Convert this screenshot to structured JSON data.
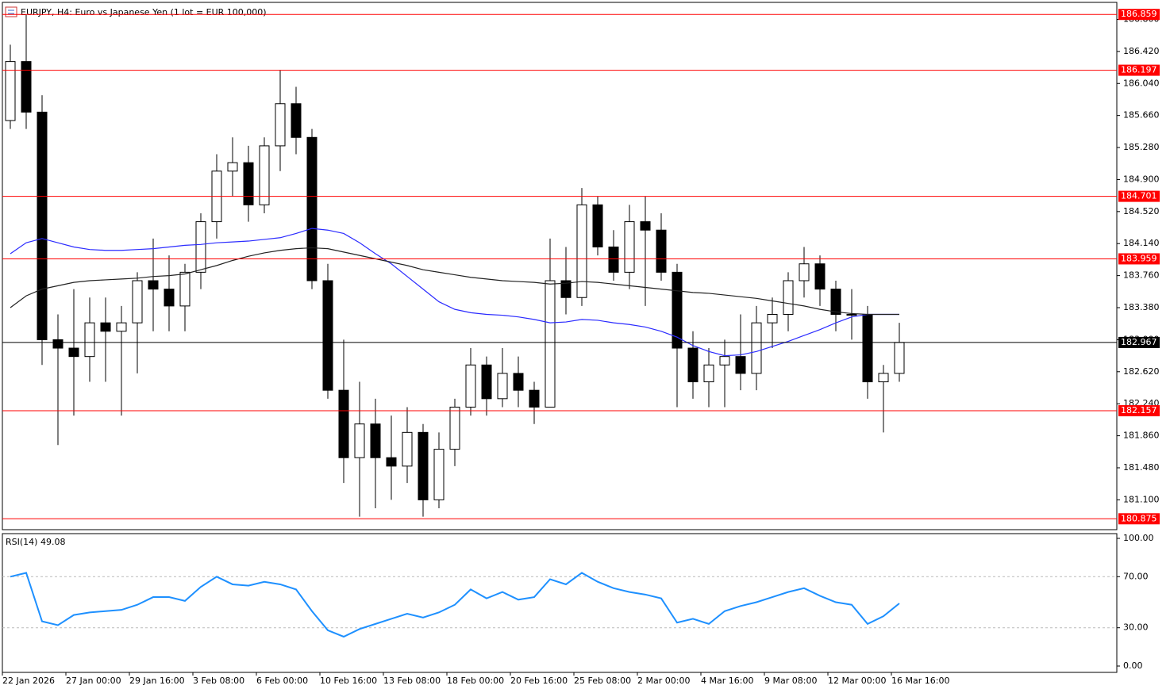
{
  "chart_data": {
    "type": "candlestick",
    "title": "EURJPY, H4:  Euro vs Japanese Yen (1 lot = EUR 100,000)",
    "categories": [
      "22 Jan 2026",
      null,
      null,
      null,
      "27 Jan 00:00",
      null,
      null,
      null,
      "29 Jan 16:00",
      null,
      null,
      null,
      "3 Feb 08:00",
      null,
      null,
      null,
      "6 Feb 00:00",
      null,
      null,
      null,
      "10 Feb 16:00",
      null,
      null,
      null,
      "13 Feb 08:00",
      null,
      null,
      null,
      "18 Feb 00:00",
      null,
      null,
      null,
      "20 Feb 16:00",
      null,
      null,
      null,
      "25 Feb 08:00",
      null,
      null,
      null,
      "2 Mar 00:00",
      null,
      null,
      null,
      "4 Mar 16:00",
      null,
      null,
      null,
      "9 Mar 08:00",
      null,
      null,
      null,
      "12 Mar 00:00",
      null,
      null,
      null,
      "16 Mar 16:00"
    ],
    "candles": [
      [
        185.6,
        186.5,
        185.5,
        186.3
      ],
      [
        186.3,
        186.86,
        185.5,
        185.7
      ],
      [
        185.7,
        185.9,
        182.7,
        183.0
      ],
      [
        183.0,
        183.3,
        181.75,
        182.9
      ],
      [
        182.9,
        183.6,
        182.1,
        182.8
      ],
      [
        182.8,
        183.5,
        182.5,
        183.2
      ],
      [
        183.2,
        183.5,
        182.5,
        183.1
      ],
      [
        183.1,
        183.4,
        182.1,
        183.2
      ],
      [
        183.2,
        183.8,
        182.6,
        183.7
      ],
      [
        183.7,
        184.2,
        183.1,
        183.6
      ],
      [
        183.6,
        184.0,
        183.1,
        183.4
      ],
      [
        183.4,
        183.9,
        183.1,
        183.8
      ],
      [
        183.8,
        184.5,
        183.6,
        184.4
      ],
      [
        184.4,
        185.2,
        184.2,
        185.0
      ],
      [
        185.0,
        185.4,
        184.7,
        185.1
      ],
      [
        185.1,
        185.3,
        184.4,
        184.6
      ],
      [
        184.6,
        185.4,
        184.5,
        185.3
      ],
      [
        185.3,
        186.2,
        185.0,
        185.8
      ],
      [
        185.8,
        186.0,
        185.2,
        185.4
      ],
      [
        185.4,
        185.5,
        183.6,
        183.7
      ],
      [
        183.7,
        183.9,
        182.3,
        182.4
      ],
      [
        182.4,
        183.0,
        181.3,
        181.6
      ],
      [
        181.6,
        182.5,
        180.9,
        182.0
      ],
      [
        182.0,
        182.3,
        181.0,
        181.6
      ],
      [
        181.6,
        182.1,
        181.1,
        181.5
      ],
      [
        181.5,
        182.2,
        181.3,
        181.9
      ],
      [
        181.9,
        182.0,
        180.9,
        181.1
      ],
      [
        181.1,
        181.9,
        181.0,
        181.7
      ],
      [
        181.7,
        182.3,
        181.5,
        182.2
      ],
      [
        182.2,
        182.9,
        182.1,
        182.7
      ],
      [
        182.7,
        182.8,
        182.1,
        182.3
      ],
      [
        182.3,
        182.9,
        182.2,
        182.6
      ],
      [
        182.6,
        182.8,
        182.2,
        182.4
      ],
      [
        182.4,
        182.5,
        182.0,
        182.2
      ],
      [
        182.2,
        184.2,
        182.2,
        183.7
      ],
      [
        183.7,
        184.1,
        183.3,
        183.5
      ],
      [
        183.5,
        184.8,
        183.4,
        184.6
      ],
      [
        184.6,
        184.7,
        184.0,
        184.1
      ],
      [
        184.1,
        184.3,
        183.7,
        183.8
      ],
      [
        183.8,
        184.6,
        183.6,
        184.4
      ],
      [
        184.4,
        184.7,
        183.4,
        184.3
      ],
      [
        184.3,
        184.5,
        183.7,
        183.8
      ],
      [
        183.8,
        183.9,
        182.2,
        182.9
      ],
      [
        182.9,
        183.1,
        182.3,
        182.5
      ],
      [
        182.5,
        182.9,
        182.2,
        182.7
      ],
      [
        182.7,
        183.0,
        182.2,
        182.8
      ],
      [
        182.8,
        183.3,
        182.4,
        182.6
      ],
      [
        182.6,
        183.4,
        182.4,
        183.2
      ],
      [
        183.2,
        183.5,
        182.9,
        183.3
      ],
      [
        183.3,
        183.8,
        183.1,
        183.7
      ],
      [
        183.7,
        184.1,
        183.5,
        183.9
      ],
      [
        183.9,
        184.0,
        183.4,
        183.6
      ],
      [
        183.6,
        183.7,
        183.1,
        183.3
      ],
      [
        183.3,
        183.6,
        183.0,
        183.3
      ],
      [
        183.3,
        183.4,
        182.3,
        182.5
      ],
      [
        182.5,
        182.7,
        181.9,
        182.6
      ],
      [
        182.6,
        183.2,
        182.5,
        182.967
      ]
    ],
    "series": [
      {
        "color": "#2b2bff",
        "values": [
          184.02,
          184.15,
          184.2,
          184.15,
          184.1,
          184.07,
          184.06,
          184.06,
          184.07,
          184.08,
          184.1,
          184.12,
          184.13,
          184.15,
          184.16,
          184.17,
          184.19,
          184.21,
          184.26,
          184.32,
          184.3,
          184.26,
          184.15,
          184.02,
          183.9,
          183.75,
          183.6,
          183.45,
          183.36,
          183.32,
          183.3,
          183.29,
          183.27,
          183.24,
          183.2,
          183.21,
          183.24,
          183.23,
          183.2,
          183.18,
          183.15,
          183.1,
          183.03,
          182.93,
          182.86,
          182.81,
          182.82,
          182.86,
          182.92,
          182.98,
          183.05,
          183.12,
          183.2,
          183.27,
          183.3,
          183.3,
          183.3
        ]
      },
      {
        "color": "#222222",
        "values": [
          183.38,
          183.52,
          183.6,
          183.64,
          183.68,
          183.7,
          183.71,
          183.72,
          183.73,
          183.75,
          183.76,
          183.78,
          183.83,
          183.88,
          183.94,
          183.99,
          184.03,
          184.06,
          184.08,
          184.09,
          184.08,
          184.04,
          184.0,
          183.96,
          183.92,
          183.88,
          183.83,
          183.8,
          183.77,
          183.74,
          183.72,
          183.7,
          183.69,
          183.68,
          183.66,
          183.67,
          183.69,
          183.68,
          183.66,
          183.64,
          183.62,
          183.6,
          183.58,
          183.56,
          183.55,
          183.53,
          183.51,
          183.49,
          183.46,
          183.43,
          183.4,
          183.36,
          183.33,
          183.31,
          183.3,
          183.3,
          183.3
        ]
      }
    ],
    "ylim": [
      180.746,
      187.002
    ],
    "yticks": [
      {
        "value": 181.1,
        "label": "181.100"
      },
      {
        "value": 181.48,
        "label": "181.480"
      },
      {
        "value": 181.86,
        "label": "181.860"
      },
      {
        "value": 182.24,
        "label": "182.240"
      },
      {
        "value": 182.62,
        "label": "182.620"
      },
      {
        "value": 183.0,
        "label": "183.000"
      },
      {
        "value": 183.38,
        "label": "183.380"
      },
      {
        "value": 183.76,
        "label": "183.760"
      },
      {
        "value": 184.14,
        "label": "184.140"
      },
      {
        "value": 184.52,
        "label": "184.520"
      },
      {
        "value": 184.9,
        "label": "184.900"
      },
      {
        "value": 185.28,
        "label": "185.280"
      },
      {
        "value": 185.66,
        "label": "185.660"
      },
      {
        "value": 186.04,
        "label": "186.040"
      },
      {
        "value": 186.42,
        "label": "186.420"
      },
      {
        "value": 186.8,
        "label": "186.800"
      }
    ],
    "levels": [
      186.859,
      186.197,
      184.701,
      183.959,
      182.157,
      180.875
    ],
    "level_color": "#ff0000",
    "current_price": 182.967,
    "rsi": {
      "title": "RSI(14) 49.08",
      "color": "#1e90ff",
      "values": [
        70,
        73,
        35,
        32,
        40,
        42,
        43,
        44,
        48,
        54,
        54,
        51,
        62,
        70,
        64,
        63,
        66,
        64,
        60,
        43,
        28,
        23,
        29,
        33,
        37,
        41,
        38,
        42,
        48,
        60,
        53,
        58,
        52,
        54,
        68,
        64,
        73,
        66,
        61,
        58,
        56,
        53,
        34,
        37,
        33,
        43,
        47,
        50,
        54,
        58,
        61,
        55,
        50,
        48,
        33,
        39,
        49.08
      ],
      "ylim": [
        0,
        100
      ],
      "yticks": [
        {
          "value": 0,
          "label": "0.00"
        },
        {
          "value": 30,
          "label": "30.00"
        },
        {
          "value": 70,
          "label": "70.00"
        },
        {
          "value": 100,
          "label": "100.00"
        }
      ],
      "levels": [
        30,
        70
      ]
    }
  }
}
